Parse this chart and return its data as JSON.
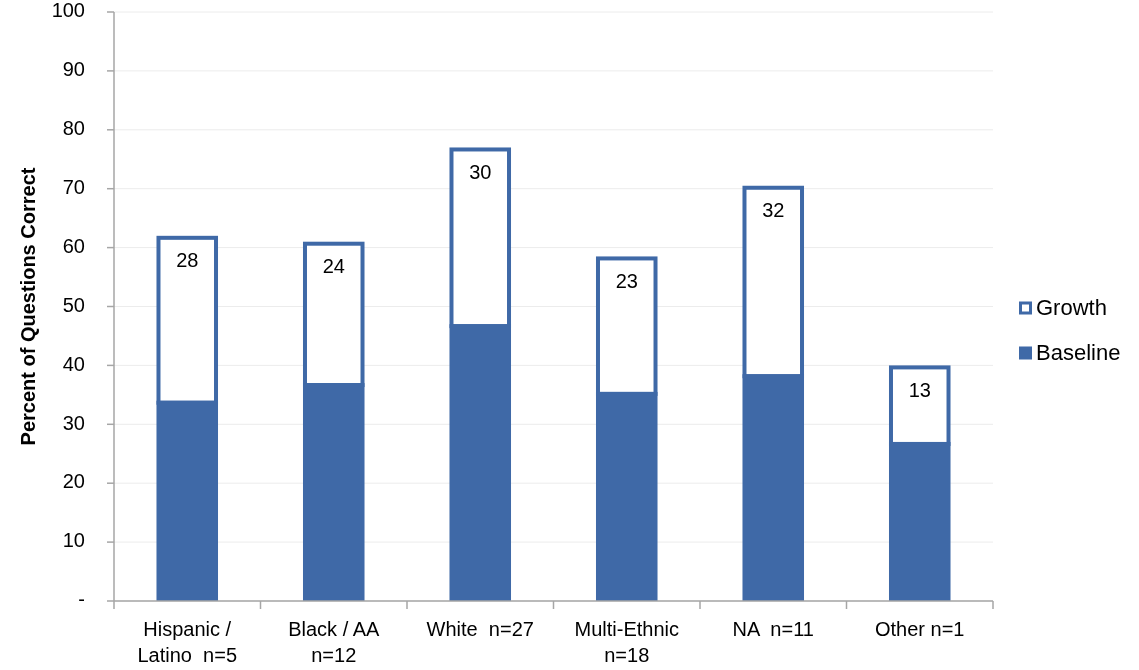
{
  "chart_data": {
    "type": "bar",
    "stacked": true,
    "ylabel": "Percent of Questions Correct",
    "categories": [
      "Hispanic / Latino  n=5",
      "Black / AA n=12",
      "White  n=27",
      "Multi-Ethnic n=18",
      "NA  n=11",
      "Other n=1"
    ],
    "series": [
      {
        "name": "Baseline",
        "color": "#3f69a7",
        "values": [
          34,
          37,
          47,
          35.5,
          38.5,
          27
        ]
      },
      {
        "name": "Growth",
        "color": "#3f69a7",
        "line_style": "solid",
        "values": [
          28,
          24,
          30,
          23,
          32,
          13
        ],
        "value_labels": [
          "28",
          "24",
          "30",
          "23",
          "32",
          "13"
        ]
      }
    ],
    "ylim": [
      0,
      100
    ],
    "yticks": [
      {
        "value": 0,
        "label": "-"
      },
      10,
      20,
      30,
      40,
      50,
      60,
      70,
      80,
      90,
      100
    ],
    "grid": "y",
    "legend": "right"
  }
}
